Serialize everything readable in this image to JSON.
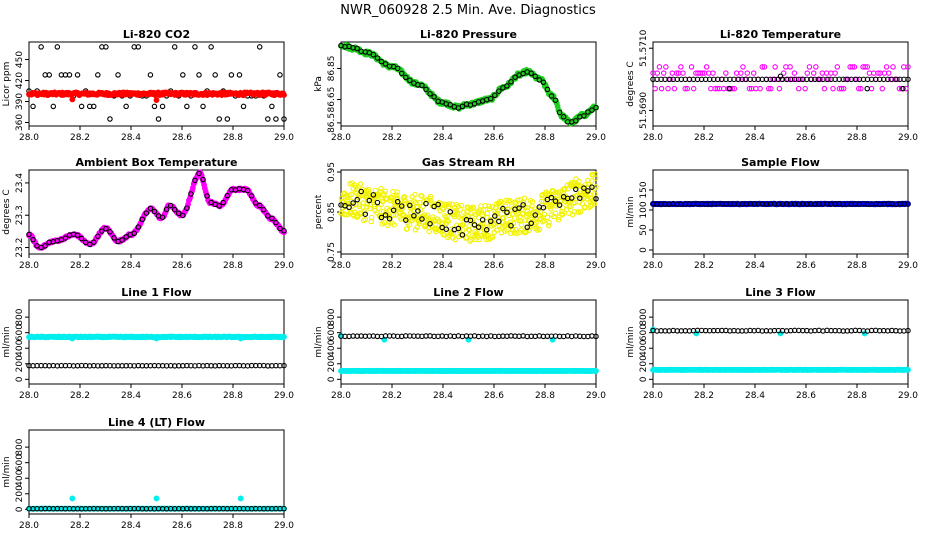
{
  "page_title": "NWR_060928  2.5 Min. Ave. Diagnostics",
  "chart_data": [
    {
      "id": "co2",
      "type": "scatter",
      "title": "Li-820 CO2",
      "ylabel": "Licor ppm",
      "xlim": [
        28.0,
        29.0
      ],
      "ylim": [
        355,
        475
      ],
      "xticks": [
        "28.0",
        "28.2",
        "28.4",
        "28.6",
        "28.8",
        "29.0"
      ],
      "yticks": [
        360,
        390,
        420,
        450
      ],
      "series": [
        {
          "name": "black",
          "color": "#000000",
          "marker": "open",
          "gen": {
            "kind": "discrete",
            "n": 64,
            "levels": [
              365,
              383,
              398,
              405,
              428,
              468
            ]
          }
        },
        {
          "name": "red",
          "color": "#ff0000",
          "marker": "filled",
          "gen": {
            "kind": "flat",
            "n": 300,
            "base": 401,
            "noise": 2,
            "outliers": [
              [
                28.17,
                393
              ],
              [
                28.5,
                392
              ]
            ]
          }
        }
      ]
    },
    {
      "id": "pressure",
      "type": "scatter",
      "title": "Li-820 Pressure",
      "ylabel": "kPa",
      "xlim": [
        28.0,
        29.0
      ],
      "ylim": [
        86.48,
        87.02
      ],
      "xticks": [
        "28.0",
        "28.2",
        "28.4",
        "28.6",
        "28.8",
        "29.0"
      ],
      "yticks": [
        86.5,
        86.65,
        86.85
      ],
      "series": [
        {
          "name": "green",
          "color": "#22cc22",
          "marker": "filled",
          "gen": {
            "kind": "curve",
            "n": 320,
            "noise": 0.012,
            "knots": [
              [
                28.0,
                87.0
              ],
              [
                28.05,
                86.98
              ],
              [
                28.1,
                86.95
              ],
              [
                28.2,
                86.86
              ],
              [
                28.3,
                86.75
              ],
              [
                28.4,
                86.63
              ],
              [
                28.46,
                86.6
              ],
              [
                28.5,
                86.62
              ],
              [
                28.58,
                86.65
              ],
              [
                28.64,
                86.73
              ],
              [
                28.7,
                86.81
              ],
              [
                28.73,
                86.83
              ],
              [
                28.78,
                86.78
              ],
              [
                28.83,
                86.67
              ],
              [
                28.87,
                86.54
              ],
              [
                28.9,
                86.5
              ],
              [
                28.95,
                86.55
              ],
              [
                29.0,
                86.6
              ]
            ]
          }
        },
        {
          "name": "black",
          "color": "#000000",
          "marker": "open",
          "gen": {
            "kind": "curve",
            "n": 64,
            "noise": 0.006,
            "knots": [
              [
                28.0,
                87.0
              ],
              [
                28.05,
                86.98
              ],
              [
                28.1,
                86.95
              ],
              [
                28.2,
                86.86
              ],
              [
                28.3,
                86.75
              ],
              [
                28.4,
                86.63
              ],
              [
                28.46,
                86.6
              ],
              [
                28.5,
                86.62
              ],
              [
                28.58,
                86.65
              ],
              [
                28.64,
                86.73
              ],
              [
                28.7,
                86.81
              ],
              [
                28.73,
                86.83
              ],
              [
                28.78,
                86.78
              ],
              [
                28.83,
                86.67
              ],
              [
                28.87,
                86.54
              ],
              [
                28.9,
                86.5
              ],
              [
                28.95,
                86.55
              ],
              [
                29.0,
                86.6
              ]
            ]
          }
        }
      ]
    },
    {
      "id": "licortemp",
      "type": "scatter",
      "title": "Li-820 Temperature",
      "ylabel": "degrees C",
      "xlim": [
        28.0,
        29.0
      ],
      "ylim": [
        51.5685,
        51.5712
      ],
      "xticks": [
        "28.0",
        "28.2",
        "28.4",
        "28.6",
        "28.8",
        "29.0"
      ],
      "yticks": [
        "51.5690",
        "51.5710"
      ],
      "series": [
        {
          "name": "magenta",
          "color": "#ff00ff",
          "marker": "open",
          "gen": {
            "kind": "discrete",
            "n": 120,
            "levels": [
              51.5697,
              51.57,
              51.5702,
              51.5704
            ]
          }
        },
        {
          "name": "black",
          "color": "#000000",
          "marker": "open",
          "gen": {
            "kind": "flat",
            "n": 64,
            "base": 51.57,
            "noise": 0,
            "outliers": [
              [
                28.3,
                51.5697
              ],
              [
                28.5,
                51.5701
              ],
              [
                28.84,
                51.5697
              ],
              [
                28.98,
                51.5697
              ]
            ]
          }
        }
      ]
    },
    {
      "id": "boxtemp",
      "type": "scatter",
      "title": "Ambient Box Temperature",
      "ylabel": "degrees C",
      "xlim": [
        28.0,
        29.0
      ],
      "ylim": [
        23.18,
        23.44
      ],
      "xticks": [
        "28.0",
        "28.2",
        "28.4",
        "28.6",
        "28.8",
        "29.0"
      ],
      "yticks": [
        23.2,
        23.3,
        23.4
      ],
      "series": [
        {
          "name": "magenta",
          "color": "#ff00ff",
          "marker": "filled",
          "gen": {
            "kind": "curve",
            "n": 320,
            "noise": 0.003,
            "knots": [
              [
                28.0,
                23.24
              ],
              [
                28.04,
                23.2
              ],
              [
                28.1,
                23.22
              ],
              [
                28.18,
                23.24
              ],
              [
                28.24,
                23.21
              ],
              [
                28.3,
                23.26
              ],
              [
                28.35,
                23.22
              ],
              [
                28.4,
                23.24
              ],
              [
                28.48,
                23.32
              ],
              [
                28.52,
                23.29
              ],
              [
                28.55,
                23.33
              ],
              [
                28.6,
                23.3
              ],
              [
                28.67,
                23.43
              ],
              [
                28.71,
                23.34
              ],
              [
                28.75,
                23.33
              ],
              [
                28.8,
                23.38
              ],
              [
                28.85,
                23.38
              ],
              [
                28.9,
                23.33
              ],
              [
                28.95,
                23.29
              ],
              [
                29.0,
                23.25
              ]
            ]
          }
        },
        {
          "name": "black",
          "color": "#000000",
          "marker": "open",
          "gen": {
            "kind": "curve",
            "n": 64,
            "noise": 0.002,
            "knots": [
              [
                28.0,
                23.24
              ],
              [
                28.04,
                23.2
              ],
              [
                28.1,
                23.22
              ],
              [
                28.18,
                23.24
              ],
              [
                28.24,
                23.21
              ],
              [
                28.3,
                23.26
              ],
              [
                28.35,
                23.22
              ],
              [
                28.4,
                23.24
              ],
              [
                28.48,
                23.32
              ],
              [
                28.52,
                23.29
              ],
              [
                28.55,
                23.33
              ],
              [
                28.6,
                23.3
              ],
              [
                28.67,
                23.43
              ],
              [
                28.71,
                23.34
              ],
              [
                28.75,
                23.33
              ],
              [
                28.8,
                23.38
              ],
              [
                28.85,
                23.38
              ],
              [
                28.9,
                23.33
              ],
              [
                28.95,
                23.29
              ],
              [
                29.0,
                23.25
              ]
            ]
          }
        }
      ]
    },
    {
      "id": "rh",
      "type": "scatter",
      "title": "Gas Stream RH",
      "ylabel": "percent",
      "xlim": [
        28.0,
        29.0
      ],
      "ylim": [
        0.745,
        0.955
      ],
      "xticks": [
        "28.0",
        "28.2",
        "28.4",
        "28.6",
        "28.8",
        "29.0"
      ],
      "yticks": [
        0.75,
        0.85,
        0.95
      ],
      "series": [
        {
          "name": "yellow",
          "color": "#f2f200",
          "marker": "open",
          "gen": {
            "kind": "curve",
            "n": 600,
            "noise": 0.045,
            "knots": [
              [
                28.0,
                0.88
              ],
              [
                28.3,
                0.85
              ],
              [
                28.5,
                0.82
              ],
              [
                28.7,
                0.84
              ],
              [
                29.0,
                0.9
              ]
            ]
          }
        },
        {
          "name": "black",
          "color": "#000000",
          "marker": "open",
          "gen": {
            "kind": "curve",
            "n": 64,
            "noise": 0.03,
            "knots": [
              [
                28.0,
                0.88
              ],
              [
                28.3,
                0.85
              ],
              [
                28.5,
                0.82
              ],
              [
                28.7,
                0.84
              ],
              [
                29.0,
                0.9
              ]
            ]
          }
        }
      ]
    },
    {
      "id": "sampleflow",
      "type": "scatter",
      "title": "Sample Flow",
      "ylabel": "ml/min",
      "xlim": [
        28.0,
        29.0
      ],
      "ylim": [
        -10,
        200
      ],
      "xticks": [
        "28.0",
        "28.2",
        "28.4",
        "28.6",
        "28.8",
        "29.0"
      ],
      "yticks": [
        0,
        50,
        100,
        150
      ],
      "series": [
        {
          "name": "blue",
          "color": "#0000ff",
          "marker": "filled",
          "gen": {
            "kind": "flat",
            "n": 300,
            "base": 115,
            "noise": 0.8,
            "outliers": []
          }
        },
        {
          "name": "black",
          "color": "#000000",
          "marker": "open",
          "gen": {
            "kind": "flat",
            "n": 64,
            "base": 115,
            "noise": 0.5,
            "outliers": []
          }
        }
      ]
    },
    {
      "id": "line1",
      "type": "scatter",
      "title": "Line 1 Flow",
      "ylabel": "ml/min",
      "xlim": [
        28.0,
        29.0
      ],
      "ylim": [
        -60,
        1020
      ],
      "xticks": [
        "28.0",
        "28.2",
        "28.4",
        "28.6",
        "28.8",
        "29.0"
      ],
      "yticks": [
        0,
        200,
        400,
        600,
        800
      ],
      "series": [
        {
          "name": "cyan",
          "color": "#00eeee",
          "marker": "filled",
          "gen": {
            "kind": "flat",
            "n": 300,
            "base": 545,
            "noise": 5,
            "outliers": [
              [
                28.17,
                525
              ],
              [
                28.5,
                525
              ],
              [
                28.83,
                525
              ]
            ]
          }
        },
        {
          "name": "black",
          "color": "#000000",
          "marker": "open",
          "gen": {
            "kind": "flat",
            "n": 64,
            "base": 175,
            "noise": 2,
            "outliers": []
          }
        }
      ]
    },
    {
      "id": "line2",
      "type": "scatter",
      "title": "Line 2 Flow",
      "ylabel": "ml/min",
      "xlim": [
        28.0,
        29.0
      ],
      "ylim": [
        -60,
        1020
      ],
      "xticks": [
        "28.0",
        "28.2",
        "28.4",
        "28.6",
        "28.8",
        "29.0"
      ],
      "yticks": [
        0,
        200,
        400,
        600,
        800
      ],
      "series": [
        {
          "name": "cyan",
          "color": "#00eeee",
          "marker": "filled",
          "gen": {
            "kind": "flat",
            "n": 300,
            "base": 108,
            "noise": 2,
            "outliers": [
              [
                28.0,
                560
              ],
              [
                28.17,
                510
              ],
              [
                28.5,
                510
              ],
              [
                28.83,
                510
              ]
            ]
          }
        },
        {
          "name": "black",
          "color": "#000000",
          "marker": "open",
          "gen": {
            "kind": "flat",
            "n": 64,
            "base": 555,
            "noise": 4,
            "outliers": []
          }
        }
      ]
    },
    {
      "id": "line3",
      "type": "scatter",
      "title": "Line 3 Flow",
      "ylabel": "ml/min",
      "xlim": [
        28.0,
        29.0
      ],
      "ylim": [
        -60,
        1020
      ],
      "xticks": [
        "28.0",
        "28.2",
        "28.4",
        "28.6",
        "28.8",
        "29.0"
      ],
      "yticks": [
        0,
        200,
        400,
        600,
        800
      ],
      "series": [
        {
          "name": "cyan",
          "color": "#00eeee",
          "marker": "filled",
          "gen": {
            "kind": "flat",
            "n": 300,
            "base": 122,
            "noise": 2,
            "outliers": [
              [
                28.0,
                640
              ],
              [
                28.17,
                590
              ],
              [
                28.5,
                590
              ],
              [
                28.83,
                590
              ]
            ]
          }
        },
        {
          "name": "black",
          "color": "#000000",
          "marker": "open",
          "gen": {
            "kind": "flat",
            "n": 64,
            "base": 625,
            "noise": 4,
            "outliers": []
          }
        }
      ]
    },
    {
      "id": "line4",
      "type": "scatter",
      "title": "Line 4 (LT) Flow",
      "ylabel": "ml/min",
      "xlim": [
        28.0,
        29.0
      ],
      "ylim": [
        -60,
        1020
      ],
      "xticks": [
        "28.0",
        "28.2",
        "28.4",
        "28.6",
        "28.8",
        "29.0"
      ],
      "yticks": [
        0,
        200,
        400,
        600,
        800
      ],
      "series": [
        {
          "name": "cyan",
          "color": "#00eeee",
          "marker": "filled",
          "gen": {
            "kind": "flat",
            "n": 300,
            "base": 8,
            "noise": 1,
            "outliers": [
              [
                28.17,
                140
              ],
              [
                28.5,
                140
              ],
              [
                28.83,
                140
              ]
            ]
          }
        },
        {
          "name": "black",
          "color": "#000000",
          "marker": "open",
          "gen": {
            "kind": "flat",
            "n": 64,
            "base": 8,
            "noise": 1,
            "outliers": []
          }
        }
      ]
    }
  ]
}
